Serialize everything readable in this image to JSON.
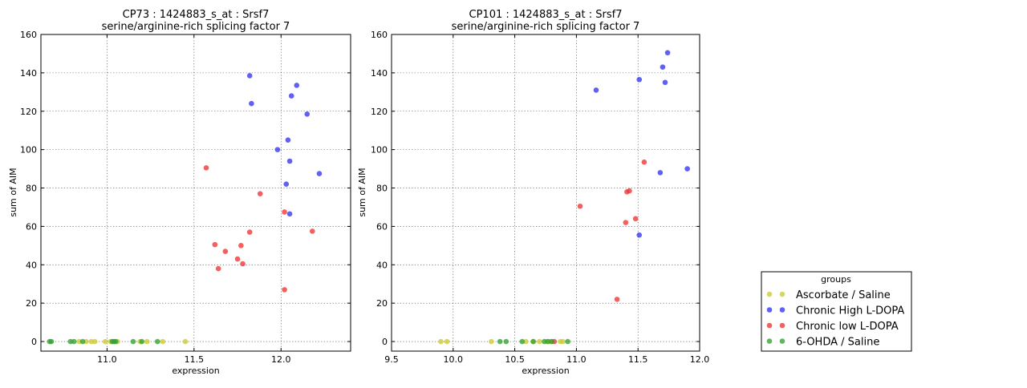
{
  "colors": {
    "Ascorbate / Saline": "#cccc33",
    "Chronic High L-DOPA": "#3333ee",
    "Chronic low L-DOPA": "#ee3333",
    "6-OHDA / Saline": "#33a033"
  },
  "legend": {
    "title": "groups",
    "placement": "lower-right",
    "entries": [
      "Ascorbate / Saline",
      "Chronic High L-DOPA",
      "Chronic low L-DOPA",
      "6-OHDA / Saline"
    ]
  },
  "chart_data": [
    {
      "type": "scatter",
      "title": "CP73 : 1424883_s_at : Srsf7",
      "subtitle": "serine/arginine-rich splicing factor 7",
      "xlabel": "expression",
      "ylabel": "sum of AIM",
      "xlim": [
        10.62,
        12.4
      ],
      "ylim": [
        -5,
        160
      ],
      "xticks": [
        "11.0",
        "11.5",
        "12.0"
      ],
      "xtick_values": [
        11.0,
        11.5,
        12.0
      ],
      "yticks": [
        "0",
        "20",
        "40",
        "60",
        "80",
        "100",
        "120",
        "140",
        "160"
      ],
      "ytick_values": [
        0,
        20,
        40,
        60,
        80,
        100,
        120,
        140,
        160
      ],
      "grid": true,
      "series": [
        {
          "name": "Ascorbate / Saline",
          "points": [
            [
              10.84,
              0
            ],
            [
              10.88,
              0
            ],
            [
              10.91,
              0
            ],
            [
              10.93,
              0
            ],
            [
              10.99,
              0
            ],
            [
              11.02,
              0
            ],
            [
              11.06,
              0
            ],
            [
              11.19,
              0
            ],
            [
              11.23,
              0
            ],
            [
              11.32,
              0
            ],
            [
              11.45,
              0
            ]
          ]
        },
        {
          "name": "Chronic High L-DOPA",
          "points": [
            [
              11.82,
              138.5
            ],
            [
              11.83,
              124
            ],
            [
              12.09,
              133.5
            ],
            [
              12.06,
              128
            ],
            [
              12.15,
              118.5
            ],
            [
              11.98,
              100
            ],
            [
              12.04,
              105
            ],
            [
              12.05,
              94
            ],
            [
              12.22,
              87.5
            ],
            [
              12.03,
              82
            ],
            [
              12.05,
              66.5
            ]
          ]
        },
        {
          "name": "Chronic low L-DOPA",
          "points": [
            [
              11.57,
              90.5
            ],
            [
              11.88,
              77
            ],
            [
              12.02,
              67.5
            ],
            [
              12.18,
              57.5
            ],
            [
              11.82,
              57
            ],
            [
              11.62,
              50.5
            ],
            [
              11.77,
              50
            ],
            [
              11.68,
              47
            ],
            [
              11.75,
              43
            ],
            [
              11.78,
              40.5
            ],
            [
              11.64,
              38
            ],
            [
              12.02,
              27
            ]
          ]
        },
        {
          "name": "6-OHDA / Saline",
          "points": [
            [
              10.67,
              0
            ],
            [
              10.68,
              0
            ],
            [
              10.79,
              0
            ],
            [
              10.81,
              0
            ],
            [
              10.86,
              0
            ],
            [
              11.03,
              0
            ],
            [
              11.04,
              0
            ],
            [
              11.05,
              0
            ],
            [
              11.15,
              0
            ],
            [
              11.2,
              0
            ],
            [
              11.29,
              0
            ]
          ]
        }
      ]
    },
    {
      "type": "scatter",
      "title": "CP101 : 1424883_s_at : Srsf7",
      "subtitle": "serine/arginine-rich splicing factor 7",
      "xlabel": "expression",
      "ylabel": "sum of AIM",
      "xlim": [
        9.5,
        12.0
      ],
      "ylim": [
        -5,
        160
      ],
      "xticks": [
        "9.5",
        "10.0",
        "10.5",
        "11.0",
        "11.5",
        "12.0"
      ],
      "xtick_values": [
        9.5,
        10.0,
        10.5,
        11.0,
        11.5,
        12.0
      ],
      "yticks": [
        "0",
        "20",
        "40",
        "60",
        "80",
        "100",
        "120",
        "140",
        "160"
      ],
      "ytick_values": [
        0,
        20,
        40,
        60,
        80,
        100,
        120,
        140,
        160
      ],
      "grid": true,
      "series": [
        {
          "name": "Ascorbate / Saline",
          "points": [
            [
              9.9,
              0
            ],
            [
              9.95,
              0
            ],
            [
              10.31,
              0
            ],
            [
              10.59,
              0
            ],
            [
              10.65,
              0
            ],
            [
              10.7,
              0
            ],
            [
              10.76,
              0
            ],
            [
              10.79,
              0
            ],
            [
              10.87,
              0
            ],
            [
              10.89,
              0
            ]
          ]
        },
        {
          "name": "Chronic High L-DOPA",
          "points": [
            [
              11.74,
              150.5
            ],
            [
              11.7,
              143
            ],
            [
              11.72,
              135
            ],
            [
              11.51,
              136.5
            ],
            [
              11.16,
              131
            ],
            [
              11.68,
              88
            ],
            [
              11.9,
              90
            ],
            [
              11.51,
              55.5
            ]
          ]
        },
        {
          "name": "Chronic low L-DOPA",
          "points": [
            [
              11.55,
              93.5
            ],
            [
              11.41,
              78
            ],
            [
              11.43,
              78.5
            ],
            [
              11.03,
              70.5
            ],
            [
              11.48,
              64
            ],
            [
              11.4,
              62
            ],
            [
              11.33,
              22
            ],
            [
              10.82,
              0
            ]
          ]
        },
        {
          "name": "6-OHDA / Saline",
          "points": [
            [
              10.38,
              0
            ],
            [
              10.43,
              0
            ],
            [
              10.56,
              0
            ],
            [
              10.65,
              0
            ],
            [
              10.74,
              0
            ],
            [
              10.77,
              0
            ],
            [
              10.8,
              0
            ],
            [
              10.93,
              0
            ]
          ]
        }
      ]
    }
  ]
}
